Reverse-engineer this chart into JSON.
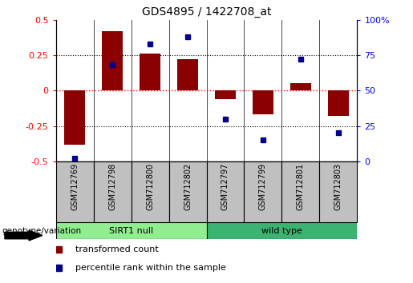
{
  "title": "GDS4895 / 1422708_at",
  "samples": [
    "GSM712769",
    "GSM712798",
    "GSM712800",
    "GSM712802",
    "GSM712797",
    "GSM712799",
    "GSM712801",
    "GSM712803"
  ],
  "red_bars": [
    -0.38,
    0.42,
    0.26,
    0.22,
    -0.06,
    -0.17,
    0.05,
    -0.18
  ],
  "blue_dots": [
    2,
    68,
    83,
    88,
    30,
    15,
    72,
    20
  ],
  "groups": [
    {
      "label": "SIRT1 null",
      "start": 0,
      "end": 3,
      "color": "#90EE90"
    },
    {
      "label": "wild type",
      "start": 4,
      "end": 7,
      "color": "#3CB371"
    }
  ],
  "group_label": "genotype/variation",
  "ylim_left": [
    -0.5,
    0.5
  ],
  "ylim_right": [
    0,
    100
  ],
  "yticks_left": [
    -0.5,
    -0.25,
    0,
    0.25,
    0.5
  ],
  "yticks_right": [
    0,
    25,
    50,
    75,
    100
  ],
  "bar_color": "#8B0000",
  "dot_color": "#00008B",
  "bar_width": 0.55,
  "legend_bar_label": "transformed count",
  "legend_dot_label": "percentile rank within the sample",
  "sirt1_color": "#90EE90",
  "wildtype_color": "#3CB371",
  "label_box_color": "#C0C0C0"
}
